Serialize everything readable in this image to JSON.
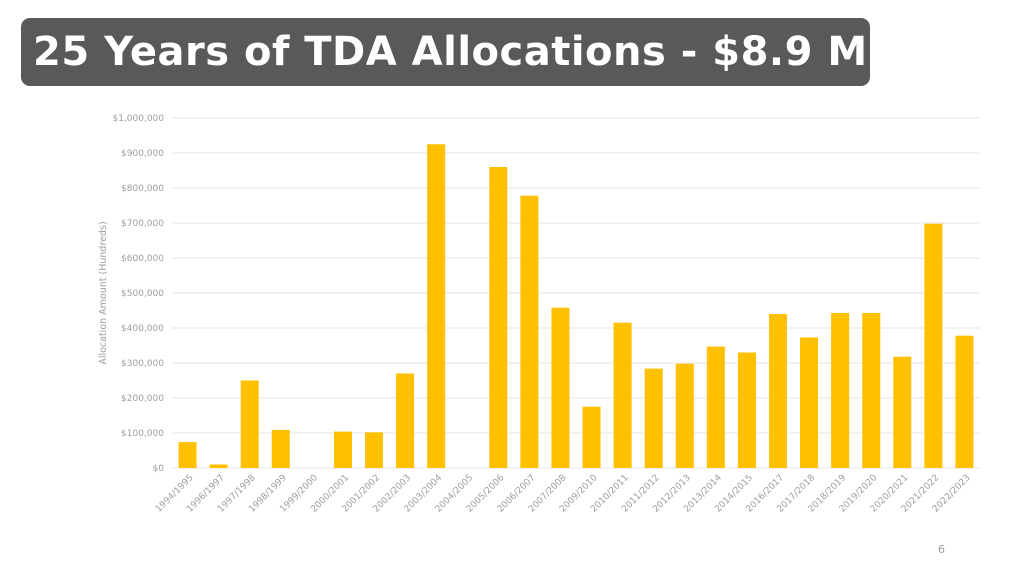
{
  "slide": {
    "title": "25 Years of TDA Allocations - $8.9 M",
    "page_number": "6",
    "colors": {
      "title_bg": "#595959",
      "title_text": "#ffffff",
      "bar": "#FFC000",
      "grid": "#e6e6e6",
      "axis_text": "#9e9e9e"
    }
  },
  "chart_data": {
    "type": "bar",
    "title": "",
    "xlabel": "",
    "ylabel": "Allocation Amount (Hundreds)",
    "ylim": [
      0,
      1000000
    ],
    "yticks": [
      0,
      100000,
      200000,
      300000,
      400000,
      500000,
      600000,
      700000,
      800000,
      900000,
      1000000
    ],
    "ytick_labels": [
      "$0",
      "$100,000",
      "$200,000",
      "$300,000",
      "$400,000",
      "$500,000",
      "$600,000",
      "$700,000",
      "$800,000",
      "$900,000",
      "$1,000,000"
    ],
    "grid": true,
    "legend": "none",
    "categories": [
      "1994/1995",
      "1996/1997",
      "1997/1998",
      "1998/1999",
      "1999/2000",
      "2000/2001",
      "2001/2002",
      "2002/2003",
      "2003/2004",
      "2004/2005",
      "2005/2006",
      "2006/2007",
      "2007/2008",
      "2009/2010",
      "2010/2011",
      "2011/2012",
      "2012/2013",
      "2013/2014",
      "2014/2015",
      "2016/2017",
      "2017/2018",
      "2018/2019",
      "2019/2020",
      "2020/2021",
      "2021/2022",
      "2022/2023"
    ],
    "values": [
      74000,
      10000,
      250000,
      109000,
      0,
      104000,
      102000,
      270000,
      925000,
      0,
      860000,
      778000,
      458000,
      175000,
      415000,
      284000,
      298000,
      347000,
      330000,
      440000,
      373000,
      443000,
      443000,
      318000,
      698000,
      378000
    ],
    "series": [
      {
        "name": "Allocation Amount",
        "color": "#FFC000"
      }
    ]
  }
}
